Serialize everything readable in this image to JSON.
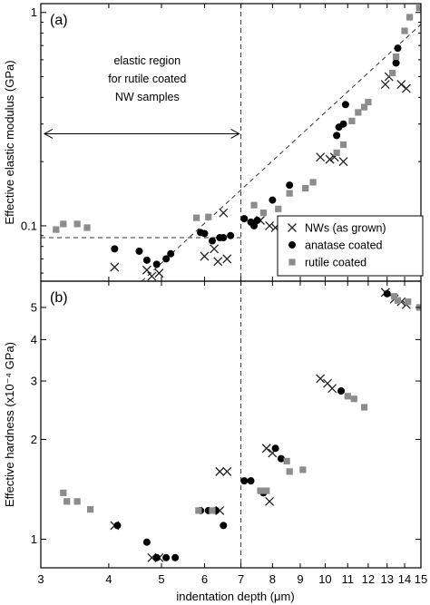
{
  "chart_data": [
    {
      "type": "scatter",
      "panel_label": "(a)",
      "ylabel": "Effective elastic modulus (GPa)",
      "xlabel": "",
      "xscale": "log",
      "yscale": "log",
      "xlim": [
        3,
        15
      ],
      "ylim": [
        0.055,
        1.1
      ],
      "x_ticks": [
        3,
        4,
        5,
        6,
        7,
        8,
        9,
        10,
        11,
        12,
        13,
        14,
        15
      ],
      "y_ticks": [
        0.1,
        1
      ],
      "y_tick_labels": [
        "0.1",
        "1"
      ],
      "annotation": {
        "lines": [
          "elastic region",
          "for rutile coated",
          "NW samples"
        ],
        "arrow_from_x": 3,
        "arrow_to_x": 7
      },
      "reference_lines": {
        "vertical_x": 7,
        "horizontal_y": 0.088,
        "horizontal_x_range": [
          3,
          7
        ],
        "diagonal_from": [
          4.6,
          0.055
        ],
        "diagonal_to": [
          15,
          0.88
        ]
      },
      "legend": {
        "position": "bottom-right",
        "entries": [
          "NWs (as grown)",
          "anatase coated",
          "rutile coated"
        ]
      },
      "series": [
        {
          "name": "NWs (as grown)",
          "marker": "x",
          "points": [
            [
              4.1,
              0.064
            ],
            [
              4.7,
              0.062
            ],
            [
              4.8,
              0.058
            ],
            [
              4.95,
              0.06
            ],
            [
              6.0,
              0.072
            ],
            [
              6.25,
              0.078
            ],
            [
              6.35,
              0.068
            ],
            [
              6.5,
              0.115
            ],
            [
              6.6,
              0.07
            ],
            [
              7.6,
              0.106
            ],
            [
              7.9,
              0.1
            ],
            [
              8.1,
              0.098
            ],
            [
              9.8,
              0.21
            ],
            [
              10.2,
              0.205
            ],
            [
              10.4,
              0.21
            ],
            [
              10.8,
              0.2
            ],
            [
              12.9,
              0.46
            ],
            [
              13.1,
              0.5
            ],
            [
              13.8,
              0.46
            ],
            [
              14.1,
              0.44
            ]
          ]
        },
        {
          "name": "anatase coated",
          "marker": "circle",
          "points": [
            [
              4.1,
              0.078
            ],
            [
              4.55,
              0.076
            ],
            [
              4.7,
              0.069
            ],
            [
              4.9,
              0.066
            ],
            [
              5.1,
              0.07
            ],
            [
              5.2,
              0.074
            ],
            [
              5.9,
              0.093
            ],
            [
              6.0,
              0.092
            ],
            [
              6.2,
              0.085
            ],
            [
              6.4,
              0.088
            ],
            [
              6.5,
              0.088
            ],
            [
              6.7,
              0.09
            ],
            [
              7.1,
              0.108
            ],
            [
              7.3,
              0.104
            ],
            [
              7.4,
              0.1
            ],
            [
              7.5,
              0.106
            ],
            [
              8.0,
              0.132
            ],
            [
              8.6,
              0.155
            ],
            [
              10.5,
              0.265
            ],
            [
              10.6,
              0.29
            ],
            [
              10.8,
              0.3
            ],
            [
              10.9,
              0.37
            ],
            [
              13.5,
              0.58
            ],
            [
              13.6,
              0.68
            ]
          ]
        },
        {
          "name": "rutile coated",
          "marker": "square",
          "points": [
            [
              3.2,
              0.096
            ],
            [
              3.3,
              0.102
            ],
            [
              3.5,
              0.102
            ],
            [
              3.65,
              0.098
            ],
            [
              5.8,
              0.109
            ],
            [
              6.1,
              0.11
            ],
            [
              7.4,
              0.125
            ],
            [
              7.7,
              0.115
            ],
            [
              8.2,
              0.12
            ],
            [
              8.6,
              0.142
            ],
            [
              9.2,
              0.15
            ],
            [
              9.5,
              0.16
            ],
            [
              10.5,
              0.22
            ],
            [
              10.8,
              0.24
            ],
            [
              11.2,
              0.31
            ],
            [
              11.5,
              0.34
            ],
            [
              11.8,
              0.36
            ],
            [
              12.0,
              0.38
            ],
            [
              13.3,
              0.52
            ],
            [
              13.5,
              0.62
            ],
            [
              14.0,
              0.82
            ],
            [
              14.3,
              0.95
            ],
            [
              14.9,
              1.05
            ]
          ]
        }
      ]
    },
    {
      "type": "scatter",
      "panel_label": "(b)",
      "ylabel": "Effective hardness (x10⁻⁴ GPa)",
      "xlabel": "indentation depth (μm)",
      "xscale": "log",
      "yscale": "log",
      "xlim": [
        3,
        15
      ],
      "ylim": [
        0.82,
        6.0
      ],
      "x_ticks": [
        3,
        4,
        5,
        6,
        7,
        8,
        9,
        10,
        11,
        12,
        13,
        14,
        15
      ],
      "x_tick_labels": [
        "3",
        "4",
        "5",
        "6",
        "7",
        "8",
        "9",
        "10",
        "11",
        "12",
        "13",
        "14",
        "15"
      ],
      "y_ticks": [
        1,
        2,
        3,
        4,
        5
      ],
      "y_tick_labels": [
        "1",
        "2",
        "3",
        "4",
        "5"
      ],
      "reference_lines": {
        "vertical_x": 7
      },
      "series": [
        {
          "name": "NWs (as grown)",
          "marker": "x",
          "points": [
            [
              4.1,
              1.1
            ],
            [
              4.8,
              0.88
            ],
            [
              4.95,
              0.88
            ],
            [
              6.4,
              1.6
            ],
            [
              6.6,
              1.6
            ],
            [
              6.4,
              1.22
            ],
            [
              7.8,
              1.88
            ],
            [
              7.9,
              1.3
            ],
            [
              8.0,
              1.82
            ],
            [
              9.8,
              3.05
            ],
            [
              10.1,
              2.95
            ],
            [
              10.3,
              2.85
            ],
            [
              12.9,
              5.55
            ],
            [
              13.4,
              5.3
            ],
            [
              13.8,
              5.2
            ],
            [
              14.1,
              5.1
            ]
          ]
        },
        {
          "name": "anatase coated",
          "marker": "circle",
          "points": [
            [
              4.15,
              1.1
            ],
            [
              4.7,
              0.98
            ],
            [
              4.9,
              0.88
            ],
            [
              5.1,
              0.88
            ],
            [
              5.3,
              0.88
            ],
            [
              5.9,
              1.22
            ],
            [
              6.1,
              1.22
            ],
            [
              6.3,
              1.22
            ],
            [
              6.5,
              1.1
            ],
            [
              7.1,
              1.5
            ],
            [
              7.3,
              1.5
            ],
            [
              7.7,
              1.38
            ],
            [
              8.1,
              1.88
            ],
            [
              8.3,
              1.75
            ],
            [
              10.7,
              2.8
            ],
            [
              13.0,
              5.5
            ]
          ]
        },
        {
          "name": "rutile coated",
          "marker": "square",
          "points": [
            [
              3.3,
              1.38
            ],
            [
              3.35,
              1.3
            ],
            [
              3.5,
              1.3
            ],
            [
              3.7,
              1.23
            ],
            [
              5.85,
              1.22
            ],
            [
              6.2,
              1.22
            ],
            [
              7.6,
              1.4
            ],
            [
              7.8,
              1.4
            ],
            [
              8.5,
              1.72
            ],
            [
              8.6,
              1.6
            ],
            [
              9.1,
              1.62
            ],
            [
              11.0,
              2.7
            ],
            [
              11.3,
              2.65
            ],
            [
              11.8,
              2.5
            ],
            [
              13.4,
              5.4
            ],
            [
              13.6,
              5.25
            ],
            [
              14.2,
              5.2
            ],
            [
              14.9,
              5.0
            ]
          ]
        }
      ]
    }
  ]
}
